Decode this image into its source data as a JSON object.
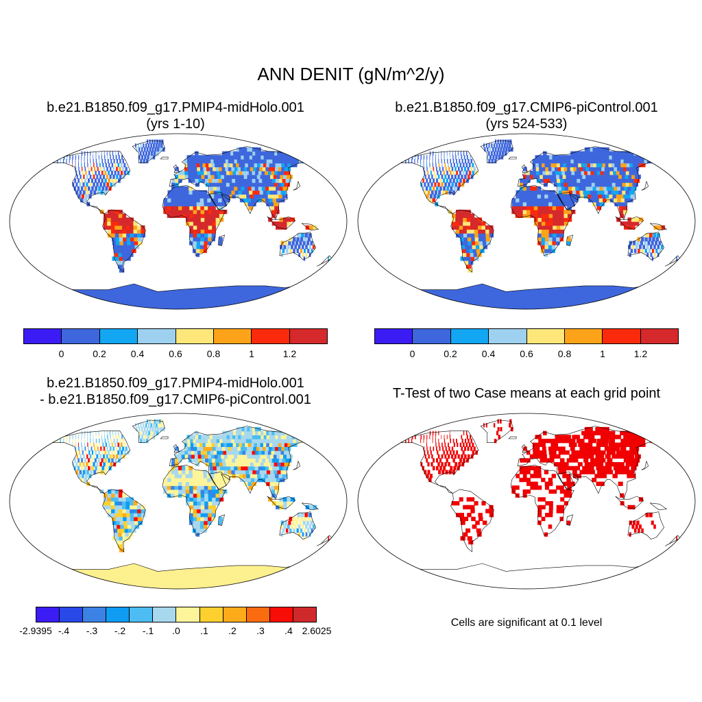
{
  "title": "ANN DENIT (gN/m^2/y)",
  "panels": [
    {
      "id": "top-left",
      "title_line1": "b.e21.B1850.f09_g17.PMIP4-midHolo.001",
      "title_line2": "(yrs 1-10)",
      "kind": "field"
    },
    {
      "id": "top-right",
      "title_line1": "b.e21.B1850.f09_g17.CMIP6-piControl.001",
      "title_line2": "(yrs 524-533)",
      "kind": "field"
    },
    {
      "id": "bottom-left",
      "title_line1": "b.e21.B1850.f09_g17.PMIP4-midHolo.001",
      "title_line2": "- b.e21.B1850.f09_g17.CMIP6-piControl.001",
      "kind": "difference"
    },
    {
      "id": "bottom-right",
      "title_line1": "T-Test of two Case means at each grid point",
      "kind": "significance"
    }
  ],
  "colorbar_field": {
    "colors": [
      "#3b1cf5",
      "#3e67dd",
      "#13a6f2",
      "#9ed0ef",
      "#fde77a",
      "#fda319",
      "#fc2a0c",
      "#d5292c"
    ],
    "tick_labels": [
      "0",
      "0.2",
      "0.4",
      "0.6",
      "0.8",
      "1",
      "1.2"
    ]
  },
  "colorbar_diff": {
    "colors": [
      "#3b1cf5",
      "#2848e8",
      "#3b82e4",
      "#0f9cf2",
      "#4cbcf2",
      "#a7d8ee",
      "#fef49a",
      "#fdd02f",
      "#fdab1b",
      "#fb6b10",
      "#f70d05",
      "#d0292c"
    ],
    "tick_labels": [
      "-2.9395",
      "-.4",
      "-.3",
      "-.2",
      "-.1",
      ".0",
      ".1",
      ".2",
      ".3",
      ".4",
      "2.6025"
    ]
  },
  "significance_note": "Cells are significant at 0.1 level",
  "colors": {
    "ocean": "#ffffff",
    "land_low": "#3e67dd",
    "sig": "#f00000",
    "antarctica_diff": "#fdf08f",
    "outline": "#000000"
  }
}
